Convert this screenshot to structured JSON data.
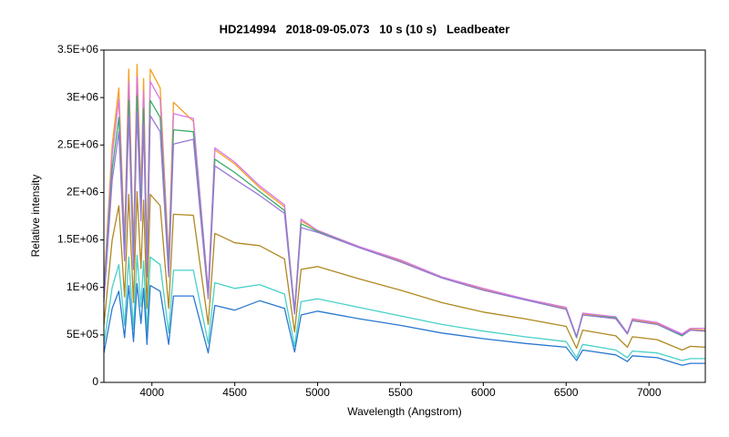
{
  "chart_data": {
    "type": "line",
    "title": "HD214994   2018-09-05.073   10 s (10 s)   Leadbeater",
    "xlabel": "Wavelength (Angstrom)",
    "ylabel": "Relative intensity",
    "x": [
      3710,
      3760,
      3800,
      3835,
      3860,
      3889,
      3910,
      3934,
      3950,
      3970,
      3990,
      4050,
      4101,
      4130,
      4250,
      4340,
      4380,
      4500,
      4650,
      4800,
      4861,
      4900,
      5000,
      5250,
      5500,
      5750,
      6000,
      6250,
      6500,
      6563,
      6600,
      6800,
      6870,
      6900,
      7050,
      7200,
      7250,
      7340
    ],
    "xlim": [
      3710,
      7340
    ],
    "xticks": [
      4000,
      4500,
      5000,
      5500,
      6000,
      6500,
      7000
    ],
    "ylim": [
      0,
      3500000
    ],
    "yticks": [
      0,
      {
        "value": 500000,
        "label": "5E+05"
      },
      {
        "value": 1000000,
        "label": "1E+06"
      },
      {
        "value": 1500000,
        "label": "1.5E+06"
      },
      {
        "value": 2000000,
        "label": "2E+06"
      },
      {
        "value": 2500000,
        "label": "2.5E+06"
      },
      {
        "value": 3000000,
        "label": "3E+06"
      },
      {
        "value": 3500000,
        "label": "3.5E+06"
      }
    ],
    "grid": false,
    "series": [
      {
        "color": "#f5a020",
        "values": [
          1000000,
          2500000,
          3100000,
          1500000,
          3300000,
          1400000,
          3350000,
          2000000,
          3200000,
          1300000,
          3300000,
          3100000,
          1300000,
          2950000,
          2750000,
          950000,
          2450000,
          2300000,
          2050000,
          1850000,
          750000,
          1700000,
          1600000,
          1430000,
          1280000,
          1110000,
          980000,
          880000,
          780000,
          480000,
          720000,
          680000,
          520000,
          660000,
          620000,
          500000,
          560000,
          550000
        ]
      },
      {
        "color": "#d878e8",
        "values": [
          960000,
          2400000,
          2980000,
          1440000,
          3170000,
          1340000,
          3220000,
          1920000,
          3070000,
          1250000,
          3170000,
          2980000,
          1250000,
          2830000,
          2780000,
          960000,
          2470000,
          2320000,
          2070000,
          1870000,
          760000,
          1720000,
          1600000,
          1430000,
          1290000,
          1110000,
          990000,
          880000,
          790000,
          480000,
          730000,
          690000,
          520000,
          670000,
          630000,
          510000,
          570000,
          570000
        ]
      },
      {
        "color": "#3caa6a",
        "values": [
          900000,
          2250000,
          2790000,
          1350000,
          2970000,
          1260000,
          3020000,
          1800000,
          2880000,
          1170000,
          2970000,
          2790000,
          1170000,
          2660000,
          2640000,
          910000,
          2350000,
          2210000,
          2010000,
          1810000,
          740000,
          1670000,
          1590000,
          1420000,
          1270000,
          1100000,
          970000,
          870000,
          770000,
          470000,
          710000,
          680000,
          510000,
          650000,
          610000,
          490000,
          550000,
          540000
        ]
      },
      {
        "color": "#9a78d8",
        "values": [
          850000,
          2130000,
          2640000,
          1280000,
          2810000,
          1190000,
          2850000,
          1700000,
          2720000,
          1110000,
          2810000,
          2640000,
          1110000,
          2510000,
          2560000,
          880000,
          2280000,
          2140000,
          1970000,
          1780000,
          720000,
          1630000,
          1580000,
          1420000,
          1270000,
          1100000,
          970000,
          870000,
          770000,
          480000,
          710000,
          670000,
          510000,
          650000,
          610000,
          500000,
          550000,
          540000
        ]
      },
      {
        "color": "#b08820",
        "values": [
          600000,
          1500000,
          1860000,
          900000,
          1980000,
          840000,
          2010000,
          1200000,
          1920000,
          780000,
          1980000,
          1860000,
          780000,
          1770000,
          1760000,
          610000,
          1570000,
          1470000,
          1440000,
          1300000,
          530000,
          1190000,
          1220000,
          1090000,
          970000,
          840000,
          740000,
          670000,
          590000,
          360000,
          550000,
          490000,
          370000,
          480000,
          450000,
          340000,
          380000,
          370000
        ]
      },
      {
        "color": "#48d0c8",
        "values": [
          400000,
          1000000,
          1240000,
          600000,
          1320000,
          560000,
          1340000,
          800000,
          1280000,
          520000,
          1320000,
          1240000,
          520000,
          1180000,
          1180000,
          410000,
          1050000,
          990000,
          1030000,
          930000,
          380000,
          850000,
          880000,
          790000,
          700000,
          610000,
          540000,
          480000,
          430000,
          260000,
          400000,
          340000,
          260000,
          330000,
          310000,
          230000,
          250000,
          250000
        ]
      },
      {
        "color": "#2a78d0",
        "values": [
          310000,
          780000,
          960000,
          470000,
          1020000,
          430000,
          1040000,
          620000,
          990000,
          400000,
          1020000,
          960000,
          400000,
          910000,
          910000,
          310000,
          810000,
          760000,
          860000,
          780000,
          320000,
          710000,
          750000,
          670000,
          600000,
          520000,
          460000,
          410000,
          370000,
          230000,
          340000,
          290000,
          220000,
          280000,
          260000,
          180000,
          200000,
          200000
        ]
      }
    ]
  }
}
